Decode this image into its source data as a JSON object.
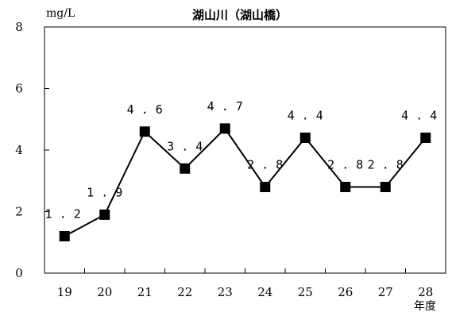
{
  "chart_data": {
    "type": "line",
    "title": "湖山川（湖山橋）",
    "ylabel": "mg/L",
    "xlabel": "年度",
    "categories": [
      "19",
      "20",
      "21",
      "22",
      "23",
      "24",
      "25",
      "26",
      "27",
      "28"
    ],
    "series": [
      {
        "values": [
          1.2,
          1.9,
          4.6,
          3.4,
          4.7,
          2.8,
          4.4,
          2.8,
          2.8,
          4.4
        ],
        "labels": [
          "1.2",
          "1.9",
          "4.6",
          "3.4",
          "4.7",
          "2.8",
          "4.4",
          "2.8",
          "2.8",
          "4.4"
        ],
        "color": "#000000",
        "marker": "square"
      }
    ],
    "ylim": [
      0,
      8
    ],
    "yticks": [
      "0",
      "2",
      "4",
      "6",
      "8"
    ],
    "grid": false,
    "legend": "none"
  }
}
